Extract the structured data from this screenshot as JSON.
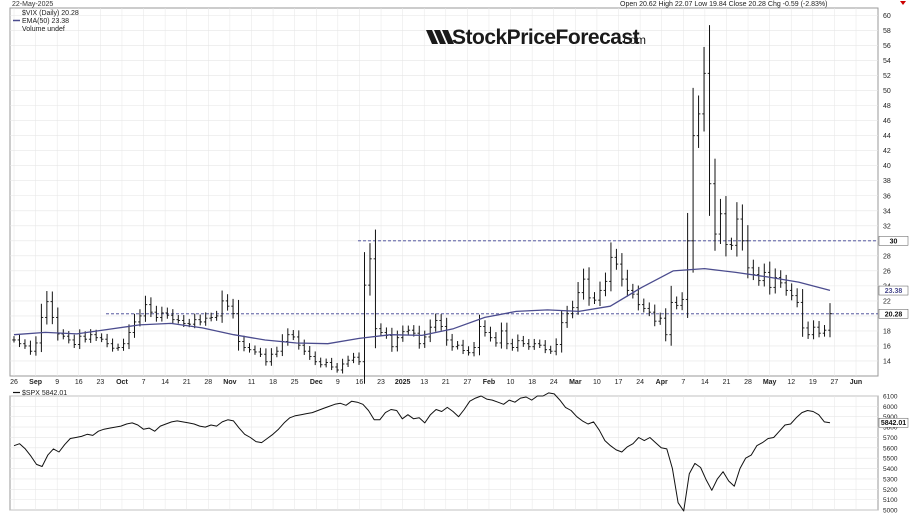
{
  "header": {
    "date": "22-May-2025",
    "ohlc": "Open 20.62  High 22.07  Low 19.84  Close 20.28  Chg -0.59 (-2.83%)"
  },
  "legend": {
    "vix": "$VIX (Daily) 20.28",
    "ema": "EMA(50) 23.38",
    "volume": "Volume undef"
  },
  "watermark": {
    "brand": "StockPriceForecast",
    "tld": ".com"
  },
  "lower_legend": "$SPX 5842.01",
  "colors": {
    "bars": "#111111",
    "ema": "#4b4c8e",
    "spx": "#111111",
    "dashed": "#3a3f8f",
    "grid": "#e6e6e6"
  },
  "chart_data": [
    {
      "type": "line",
      "subtype": "ohlc-bars",
      "title": "$VIX (Daily) 20.28",
      "ylim": [
        12,
        61
      ],
      "y_ticks": [
        14,
        16,
        18,
        20,
        22,
        24,
        26,
        28,
        30,
        32,
        34,
        36,
        38,
        40,
        42,
        44,
        46,
        48,
        50,
        52,
        54,
        56,
        58,
        60
      ],
      "x_ticks": [
        "26",
        "Sep",
        "9",
        "16",
        "23",
        "Oct",
        "7",
        "14",
        "21",
        "28",
        "Nov",
        "11",
        "18",
        "25",
        "Dec",
        "9",
        "16",
        "23",
        "2025",
        "13",
        "21",
        "27",
        "Feb",
        "10",
        "18",
        "24",
        "Mar",
        "10",
        "17",
        "24",
        "Apr",
        "7",
        "14",
        "21",
        "28",
        "May",
        "12",
        "19",
        "27",
        "Jun"
      ],
      "horizontal_lines": [
        30,
        20.28
      ],
      "price_labels": {
        "last": "20.28",
        "ema": "23.38",
        "level": "30"
      },
      "series": [
        {
          "name": "$VIX",
          "values": [
            16.8,
            16.3,
            16.0,
            15.3,
            16.4,
            19.8,
            21.9,
            19.8,
            17.6,
            17.3,
            16.8,
            16.2,
            17.3,
            16.9,
            17.5,
            17.1,
            16.9,
            16.3,
            15.7,
            15.8,
            16.3,
            17.8,
            19.2,
            20.0,
            21.5,
            20.5,
            19.8,
            20.4,
            20.1,
            19.5,
            19.4,
            19.0,
            18.9,
            19.5,
            19.2,
            19.7,
            19.8,
            20.0,
            22.0,
            21.3,
            20.3,
            16.6,
            15.8,
            15.5,
            15.2,
            14.9,
            13.9,
            14.9,
            15.3,
            16.6,
            17.5,
            17.2,
            16.1,
            15.3,
            14.6,
            13.9,
            13.5,
            13.8,
            13.2,
            12.8,
            13.6,
            14.1,
            14.5,
            13.9,
            24.1,
            27.6,
            18.3,
            17.8,
            17.4,
            15.9,
            17.1,
            17.9,
            18.1,
            17.7,
            16.3,
            17.2,
            18.5,
            19.4,
            18.6,
            16.8,
            15.9,
            16.1,
            15.4,
            15.1,
            15.8,
            18.6,
            17.8,
            17.1,
            16.4,
            18.0,
            16.3,
            15.8,
            16.7,
            16.3,
            15.9,
            16.3,
            16.1,
            15.5,
            15.3,
            16.2,
            19.1,
            20.3,
            21.1,
            23.1,
            24.9,
            22.4,
            22.1,
            23.4,
            24.6,
            27.8,
            26.9,
            24.9,
            23.4,
            22.9,
            21.5,
            21.0,
            20.5,
            19.3,
            19.7,
            17.5,
            21.8,
            21.4,
            22.2,
            30.0,
            44.0,
            46.9,
            52.3,
            37.6,
            30.9,
            33.6,
            29.5,
            29.4,
            32.9,
            30.0,
            26.4,
            25.5,
            24.7,
            25.8,
            23.8,
            25.1,
            24.4,
            23.4,
            22.7,
            21.8,
            18.4,
            17.5,
            18.5,
            17.7,
            18.1,
            20.3
          ],
          "values_note": "daily closes; highs up to 60.1 in early April"
        },
        {
          "name": "EMA(50)",
          "values": [
            17.5,
            17.8,
            17.6,
            18.2,
            18.8,
            19.0,
            18.4,
            17.5,
            16.8,
            16.4,
            16.3,
            17.0,
            17.5,
            17.4,
            18.3,
            19.8,
            20.6,
            20.8,
            20.6,
            21.3,
            23.8,
            26.0,
            26.3,
            25.8,
            25.2,
            24.5,
            23.4
          ]
        }
      ]
    },
    {
      "type": "line",
      "title": "$SPX 5842.01",
      "ylim": [
        5000,
        6100
      ],
      "y_ticks": [
        5000,
        5100,
        5200,
        5300,
        5400,
        5500,
        5600,
        5700,
        5800,
        5900,
        6000,
        6100
      ],
      "price_labels": {
        "last": "5842.01"
      },
      "series": [
        {
          "name": "$SPX",
          "values": [
            5620,
            5640,
            5590,
            5520,
            5440,
            5420,
            5530,
            5590,
            5560,
            5630,
            5690,
            5700,
            5710,
            5730,
            5720,
            5760,
            5780,
            5790,
            5800,
            5810,
            5830,
            5840,
            5820,
            5780,
            5790,
            5760,
            5810,
            5830,
            5850,
            5860,
            5850,
            5840,
            5830,
            5810,
            5800,
            5820,
            5810,
            5850,
            5870,
            5860,
            5790,
            5730,
            5700,
            5660,
            5650,
            5690,
            5730,
            5780,
            5840,
            5890,
            5910,
            5920,
            5930,
            5940,
            5960,
            5980,
            6000,
            6020,
            6030,
            6010,
            6050,
            6040,
            6020,
            5960,
            5870,
            5870,
            5940,
            5970,
            5960,
            5880,
            5920,
            5880,
            5890,
            5840,
            5920,
            5970,
            5950,
            5990,
            5950,
            5900,
            5970,
            6050,
            6080,
            6100,
            6070,
            6060,
            6040,
            6020,
            6060,
            6040,
            6080,
            6090,
            6060,
            6100,
            6100,
            6130,
            6120,
            6060,
            5990,
            5960,
            5900,
            5860,
            5830,
            5850,
            5770,
            5670,
            5620,
            5580,
            5560,
            5610,
            5640,
            5700,
            5670,
            5700,
            5650,
            5600,
            5590,
            5400,
            5070,
            4990,
            5350,
            5450,
            5410,
            5290,
            5190,
            5300,
            5370,
            5280,
            5230,
            5400,
            5500,
            5530,
            5620,
            5650,
            5690,
            5700,
            5760,
            5820,
            5830,
            5890,
            5940,
            5960,
            5950,
            5920,
            5850,
            5842
          ]
        }
      ]
    }
  ]
}
